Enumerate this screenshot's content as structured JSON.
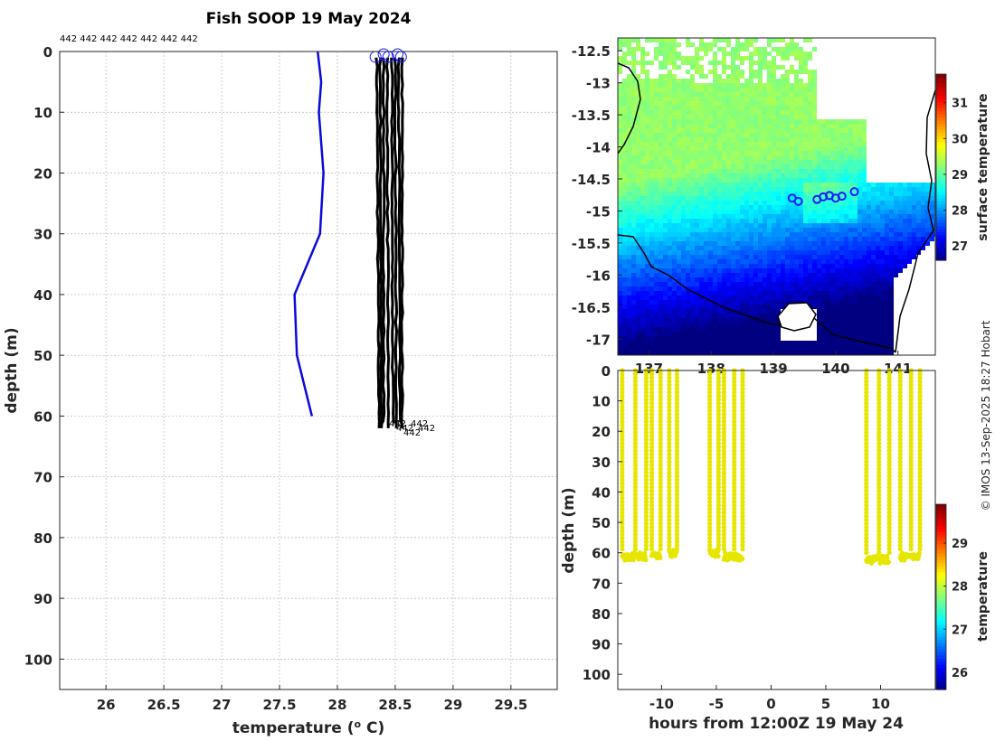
{
  "credit": "© IMOS 13-Sep-2025 18:27 Hobart",
  "colors": {
    "blue_profile": "#0a0adc",
    "black_profile": "#000000",
    "yellow_points": "#e6e600",
    "marker": "#1a1aff"
  },
  "chart_data": [
    {
      "type": "line",
      "panel": "profile",
      "title": "Fish SOOP 19 May 2024",
      "xlabel": "temperature (",
      "xlabel_sup": "o",
      "xlabel_end": " C)",
      "ylabel": "depth (m)",
      "xlim": [
        25.6,
        29.9
      ],
      "ylim": [
        105,
        0
      ],
      "xticks": [
        26,
        26.5,
        27,
        27.5,
        28,
        28.5,
        29,
        29.5
      ],
      "xtick_labels": [
        "26",
        "26.5",
        "27",
        "27.5",
        "28",
        "28.5",
        "29",
        "29.5"
      ],
      "yticks": [
        0,
        10,
        20,
        30,
        40,
        50,
        60,
        70,
        80,
        90,
        100
      ],
      "ytick_labels": [
        "0",
        "10",
        "20",
        "30",
        "40",
        "50",
        "60",
        "70",
        "80",
        "90",
        "100"
      ],
      "top_labels": "442 442 442 442 442 442 442",
      "bottom_labels": [
        "442",
        "442",
        "442",
        "442",
        "442"
      ],
      "reference_series": {
        "name": "climatology",
        "temperature": [
          27.83,
          27.86,
          27.84,
          27.88,
          27.85,
          27.63,
          27.65,
          27.78
        ],
        "depth": [
          0,
          5,
          10,
          20,
          30,
          40,
          50,
          60
        ]
      },
      "series": [
        {
          "name": "p1",
          "temperature_top": 28.34,
          "temperature_bottom": 28.36,
          "max_depth": 62
        },
        {
          "name": "p2",
          "temperature_top": 28.37,
          "temperature_bottom": 28.38,
          "max_depth": 62
        },
        {
          "name": "p3",
          "temperature_top": 28.4,
          "temperature_bottom": 28.4,
          "max_depth": 61
        },
        {
          "name": "p4",
          "temperature_top": 28.43,
          "temperature_bottom": 28.44,
          "max_depth": 62
        },
        {
          "name": "p5",
          "temperature_top": 28.47,
          "temperature_bottom": 28.48,
          "max_depth": 61
        },
        {
          "name": "p6",
          "temperature_top": 28.5,
          "temperature_bottom": 28.51,
          "max_depth": 62
        },
        {
          "name": "p7",
          "temperature_top": 28.53,
          "temperature_bottom": 28.54,
          "max_depth": 61
        },
        {
          "name": "p8",
          "temperature_top": 28.56,
          "temperature_bottom": 28.56,
          "max_depth": 62
        }
      ],
      "start_markers_temperature": [
        28.33,
        28.4,
        28.44,
        28.52,
        28.55
      ]
    },
    {
      "type": "heatmap",
      "panel": "map",
      "ylim": [
        -17.25,
        -12.3
      ],
      "xlim": [
        136.5,
        141.6
      ],
      "yticks": [
        -12.5,
        -13,
        -13.5,
        -14,
        -14.5,
        -15,
        -15.5,
        -16,
        -16.5,
        -17
      ],
      "ytick_labels": [
        "-12.5",
        "-13",
        "-13.5",
        "-14",
        "-14.5",
        "-15",
        "-15.5",
        "-16",
        "-16.5",
        "-17"
      ],
      "xticks": [
        137,
        138,
        139,
        140,
        141
      ],
      "xtick_labels": [
        "137",
        "138",
        "139",
        "140",
        "141"
      ],
      "track_lon": [
        139.3,
        139.4,
        139.7,
        139.8,
        139.9,
        140.0,
        140.1,
        140.3
      ],
      "track_lat": [
        -14.8,
        -14.85,
        -14.82,
        -14.78,
        -14.76,
        -14.8,
        -14.77,
        -14.7
      ],
      "colorbar": {
        "label": "surface temperature",
        "range": [
          26.6,
          31.8
        ],
        "ticks": [
          27,
          28,
          29,
          30,
          31
        ],
        "tick_labels": [
          "27",
          "28",
          "29",
          "30",
          "31"
        ]
      }
    },
    {
      "type": "scatter",
      "panel": "time_depth",
      "xlabel": "hours from 12:00Z 19 May 24",
      "ylabel": "depth (m)",
      "xlim": [
        -14,
        15
      ],
      "ylim": [
        105,
        0
      ],
      "xticks": [
        -10,
        -5,
        0,
        5,
        10
      ],
      "xtick_labels": [
        "-10",
        "-5",
        "0",
        "5",
        "10"
      ],
      "yticks": [
        0,
        10,
        20,
        30,
        40,
        50,
        60,
        70,
        80,
        90,
        100
      ],
      "ytick_labels": [
        "0",
        "10",
        "20",
        "30",
        "40",
        "50",
        "60",
        "70",
        "80",
        "90",
        "100"
      ],
      "casts": [
        {
          "down": -13.6,
          "up": -11.4,
          "max_depth": 62
        },
        {
          "down": -10.9,
          "up": -10.1,
          "max_depth": 62
        },
        {
          "down": -9.3,
          "up": -8.6,
          "max_depth": 61
        },
        {
          "down": -5.6,
          "up": -4.8,
          "max_depth": 61
        },
        {
          "down": -4.3,
          "up": -2.6,
          "max_depth": 62
        },
        {
          "down": 8.7,
          "up": 10.8,
          "max_depth": 63
        },
        {
          "down": 11.8,
          "up": 13.6,
          "max_depth": 62
        }
      ],
      "colorbar": {
        "label": "temperature",
        "range": [
          25.6,
          29.9
        ],
        "ticks": [
          26,
          27,
          28,
          29
        ],
        "tick_labels": [
          "26",
          "27",
          "28",
          "29"
        ]
      }
    }
  ]
}
